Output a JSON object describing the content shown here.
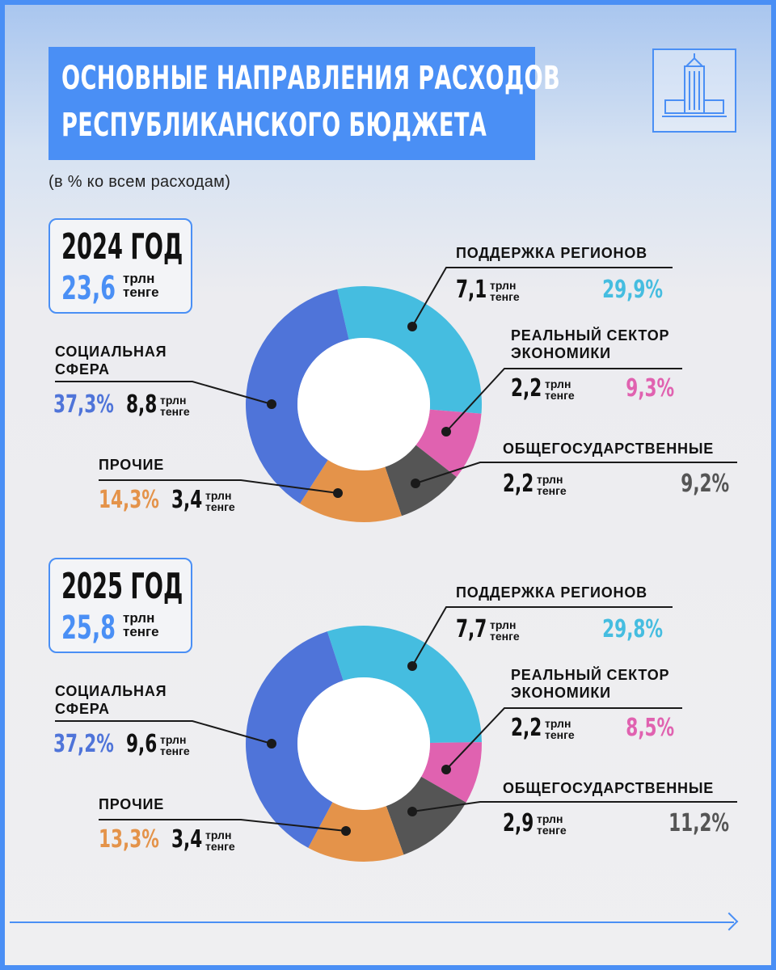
{
  "title": {
    "line1": "ОСНОВНЫЕ НАПРАВЛЕНИЯ РАСХОДОВ",
    "line2": "РЕСПУБЛИКАНСКОГО БЮДЖЕТА"
  },
  "subtitle": "(в % ко всем расходам)",
  "unit": {
    "line1": "трлн",
    "line2": "тенге"
  },
  "colors": {
    "accent": "#4a8ff5",
    "social": "#4f74d9",
    "regions": "#45bde0",
    "real_sector": "#e062b0",
    "general": "#555555",
    "other": "#e4934a"
  },
  "icons": {
    "logo": "government-building-icon",
    "arrow": "arrow-right-icon"
  },
  "years": [
    {
      "label": "2024 ГОД",
      "total": "23,6",
      "segments": {
        "regions": {
          "title": "ПОДДЕРЖКА РЕГИОНОВ",
          "amount": "7,1",
          "percent": "29,9%"
        },
        "real_sector": {
          "title_line1": "РЕАЛЬНЫЙ СЕКТОР",
          "title_line2": "ЭКОНОМИКИ",
          "amount": "2,2",
          "percent": "9,3%"
        },
        "general": {
          "title": "ОБЩЕГОСУДАРСТВЕННЫЕ",
          "amount": "2,2",
          "percent": "9,2%"
        },
        "social": {
          "title_line1": "СОЦИАЛЬНАЯ",
          "title_line2": "СФЕРА",
          "amount": "8,8",
          "percent": "37,3%"
        },
        "other": {
          "title": "ПРОЧИЕ",
          "amount": "3,4",
          "percent": "14,3%"
        }
      }
    },
    {
      "label": "2025 ГОД",
      "total": "25,8",
      "segments": {
        "regions": {
          "title": "ПОДДЕРЖКА РЕГИОНОВ",
          "amount": "7,7",
          "percent": "29,8%"
        },
        "real_sector": {
          "title_line1": "РЕАЛЬНЫЙ СЕКТОР",
          "title_line2": "ЭКОНОМИКИ",
          "amount": "2,2",
          "percent": "8,5%"
        },
        "general": {
          "title": "ОБЩЕГОСУДАРСТВЕННЫЕ",
          "amount": "2,9",
          "percent": "11,2%"
        },
        "social": {
          "title_line1": "СОЦИАЛЬНАЯ",
          "title_line2": "СФЕРА",
          "amount": "9,6",
          "percent": "37,2%"
        },
        "other": {
          "title": "ПРОЧИЕ",
          "amount": "3,4",
          "percent": "13,3%"
        }
      }
    }
  ],
  "chart_data": [
    {
      "type": "pie",
      "title": "2024 ГОД",
      "categories": [
        "ПОДДЕРЖКА РЕГИОНОВ",
        "РЕАЛЬНЫЙ СЕКТОР ЭКОНОМИКИ",
        "ОБЩЕГОСУДАРСТВЕННЫЕ",
        "ПРОЧИЕ",
        "СОЦИАЛЬНАЯ СФЕРА"
      ],
      "values": [
        29.9,
        9.3,
        9.2,
        14.3,
        37.3
      ],
      "amounts_trln_tenge": [
        7.1,
        2.2,
        2.2,
        3.4,
        8.8
      ],
      "total_trln_tenge": 23.6,
      "colors": [
        "#45bde0",
        "#e062b0",
        "#555555",
        "#e4934a",
        "#4f74d9"
      ]
    },
    {
      "type": "pie",
      "title": "2025 ГОД",
      "categories": [
        "ПОДДЕРЖКА РЕГИОНОВ",
        "РЕАЛЬНЫЙ СЕКТОР ЭКОНОМИКИ",
        "ОБЩЕГОСУДАРСТВЕННЫЕ",
        "ПРОЧИЕ",
        "СОЦИАЛЬНАЯ СФЕРА"
      ],
      "values": [
        29.8,
        8.5,
        11.2,
        13.3,
        37.2
      ],
      "amounts_trln_tenge": [
        7.7,
        2.2,
        2.9,
        3.4,
        9.6
      ],
      "total_trln_tenge": 25.8,
      "colors": [
        "#45bde0",
        "#e062b0",
        "#555555",
        "#e4934a",
        "#4f74d9"
      ]
    }
  ]
}
